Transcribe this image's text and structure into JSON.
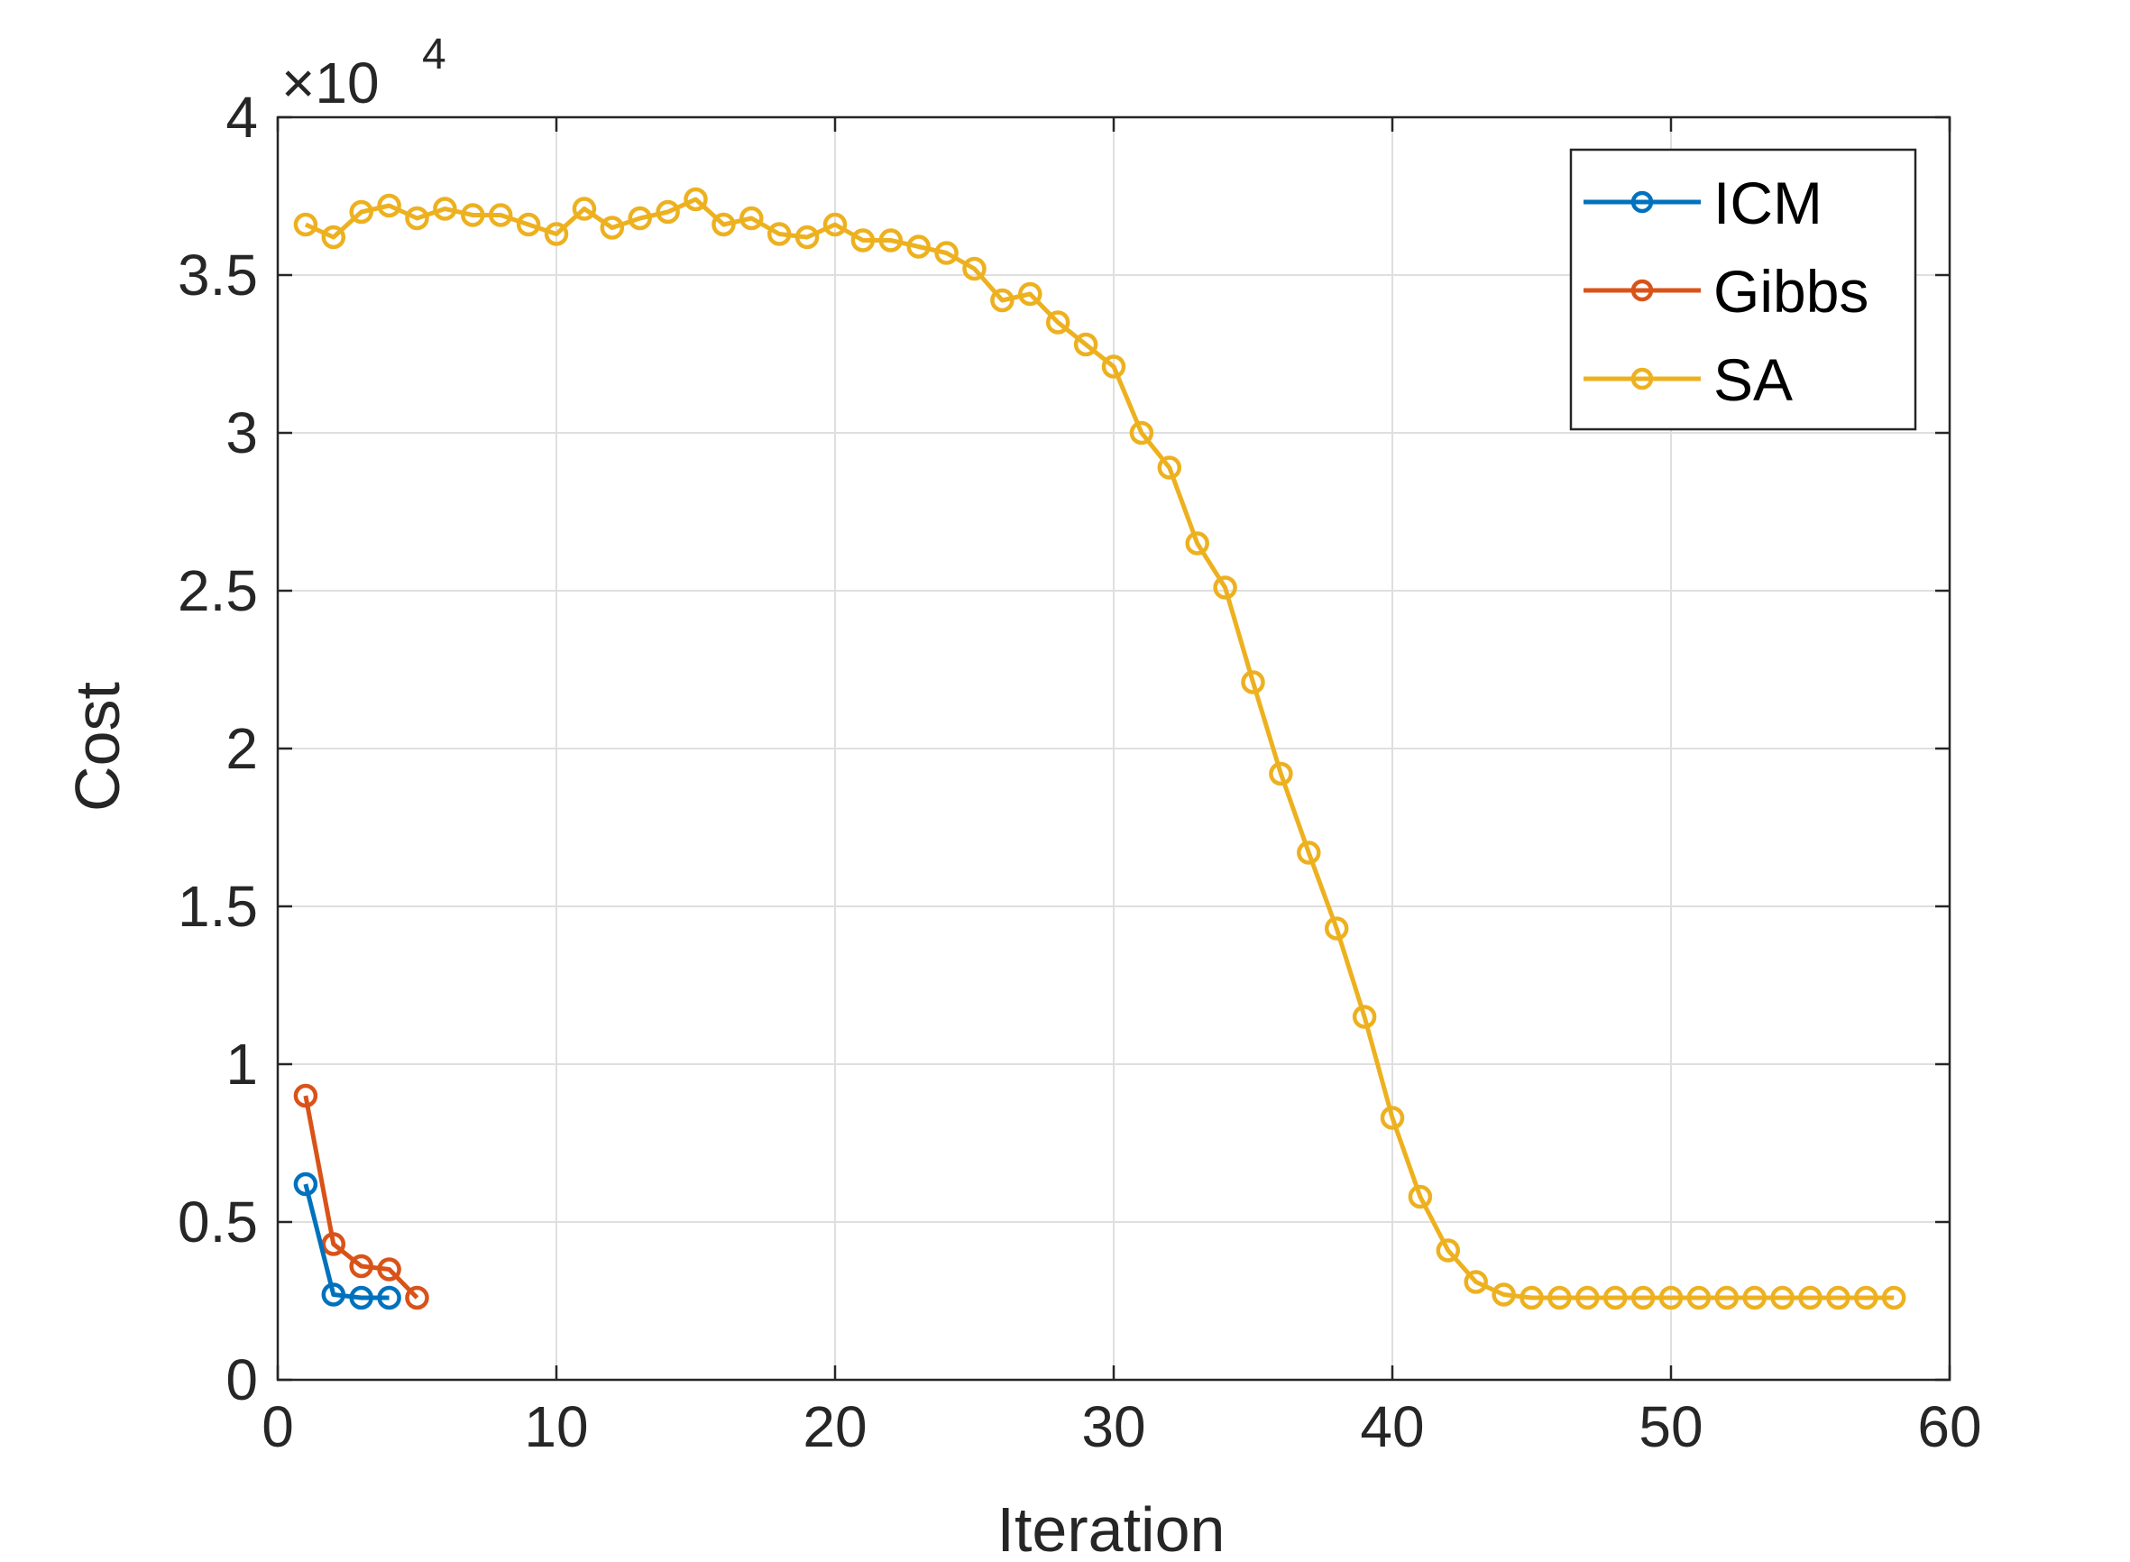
{
  "chart_data": {
    "type": "line",
    "xlabel": "Iteration",
    "ylabel": "Cost",
    "exponent_label": "×10",
    "exponent_power": "4",
    "xlim": [
      0,
      60
    ],
    "ylim": [
      0,
      4
    ],
    "xticks": [
      0,
      10,
      20,
      30,
      40,
      50,
      60
    ],
    "yticks": [
      0,
      0.5,
      1,
      1.5,
      2,
      2.5,
      3,
      3.5,
      4
    ],
    "ytick_labels": [
      "0",
      "0.5",
      "1",
      "1.5",
      "2",
      "2.5",
      "3",
      "3.5",
      "4"
    ],
    "grid": true,
    "legend_position": "top-right",
    "series": [
      {
        "name": "ICM",
        "color": "#0072BD",
        "marker": "circle",
        "x": [
          1,
          2,
          3,
          4
        ],
        "y": [
          0.62,
          0.27,
          0.26,
          0.26
        ]
      },
      {
        "name": "Gibbs",
        "color": "#D95319",
        "marker": "circle",
        "x": [
          1,
          2,
          3,
          4,
          5
        ],
        "y": [
          0.9,
          0.43,
          0.36,
          0.35,
          0.26
        ]
      },
      {
        "name": "SA",
        "color": "#EDB120",
        "marker": "circle",
        "x": [
          1,
          2,
          3,
          4,
          5,
          6,
          7,
          8,
          9,
          10,
          11,
          12,
          13,
          14,
          15,
          16,
          17,
          18,
          19,
          20,
          21,
          22,
          23,
          24,
          25,
          26,
          27,
          28,
          29,
          30,
          31,
          32,
          33,
          34,
          35,
          36,
          37,
          38,
          39,
          40,
          41,
          42,
          43,
          44,
          45,
          46,
          47,
          48,
          49,
          50,
          51,
          52,
          53,
          54,
          55,
          56,
          57,
          58
        ],
        "y": [
          3.66,
          3.62,
          3.7,
          3.72,
          3.68,
          3.71,
          3.69,
          3.69,
          3.66,
          3.63,
          3.71,
          3.65,
          3.68,
          3.7,
          3.74,
          3.66,
          3.68,
          3.63,
          3.62,
          3.66,
          3.61,
          3.61,
          3.59,
          3.57,
          3.52,
          3.42,
          3.44,
          3.35,
          3.28,
          3.21,
          3.0,
          2.89,
          2.65,
          2.51,
          2.21,
          1.92,
          1.67,
          1.43,
          1.15,
          0.83,
          0.58,
          0.41,
          0.31,
          0.27,
          0.26,
          0.26,
          0.26,
          0.26,
          0.26,
          0.26,
          0.26,
          0.26,
          0.26,
          0.26,
          0.26,
          0.26,
          0.26,
          0.26
        ]
      }
    ]
  }
}
